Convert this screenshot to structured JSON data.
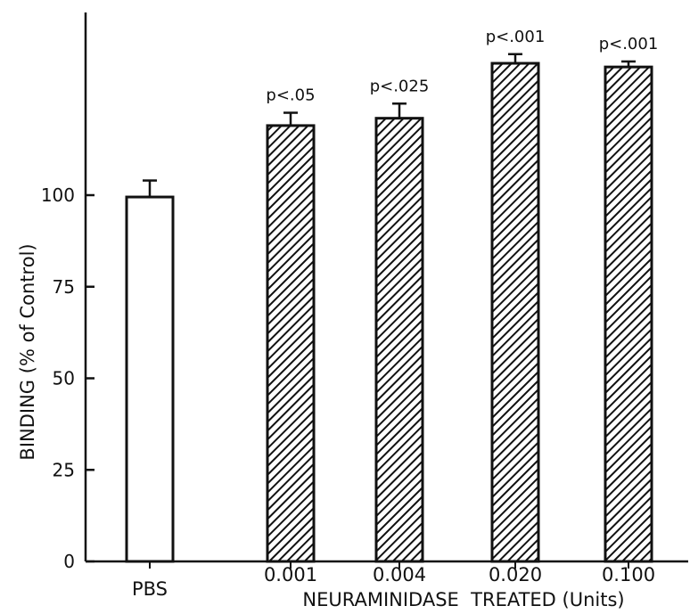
{
  "chart_data": {
    "type": "bar",
    "title": "",
    "ylabel": "BINDING (% of Control)",
    "xlabel": "",
    "group_label": "NEURAMINIDASE  TREATED (Units)",
    "ylim": [
      0,
      150
    ],
    "yticks": [
      0,
      25,
      50,
      75,
      100
    ],
    "ytick_labels": [
      "0",
      "25",
      "50",
      "75",
      "100"
    ],
    "categories": [
      "PBS",
      "0.001",
      "0.004",
      "0.020",
      "0.100"
    ],
    "values": [
      99.5,
      119,
      121,
      136,
      135
    ],
    "errors": [
      4.5,
      3.5,
      4,
      2.5,
      1.5
    ],
    "annotations": [
      "",
      "p<.05",
      "p<.025",
      "p<.001",
      "p<.001"
    ],
    "fills": [
      "open",
      "hatched",
      "hatched",
      "hatched",
      "hatched"
    ],
    "grid": false,
    "legend": "none",
    "colors": {
      "ink": "#111111",
      "background": "#ffffff"
    }
  }
}
